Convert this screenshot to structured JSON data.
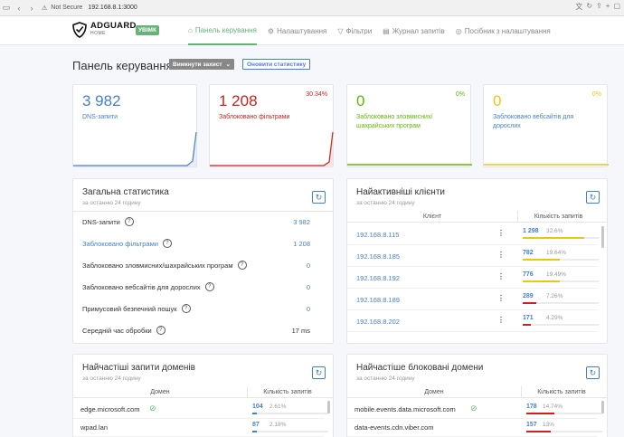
{
  "browser": {
    "not_secure": "Not Secure",
    "url": "192.168.8.1:3000"
  },
  "header": {
    "logo_name": "ADGUARD",
    "logo_sub": "HOME",
    "status_badge": "УВІМК",
    "menu": [
      {
        "label": "Панель керування",
        "icon": "dashboard-icon",
        "glyph": "⌂"
      },
      {
        "label": "Налаштування",
        "icon": "gear-icon",
        "glyph": "⚙"
      },
      {
        "label": "Фільтри",
        "icon": "filter-icon",
        "glyph": "▽"
      },
      {
        "label": "Журнал запитів",
        "icon": "log-icon",
        "glyph": "▤"
      },
      {
        "label": "Посібник з налаштування",
        "icon": "setup-guide-icon",
        "glyph": "◎"
      }
    ]
  },
  "page": {
    "title": "Панель керування",
    "disable_protection": "Вимкнути захист",
    "refresh_stats": "Оновити статистику"
  },
  "stats": [
    {
      "value": "3 982",
      "label": "DNS-запити",
      "percent": "",
      "color": "#467fcf"
    },
    {
      "value": "1 208",
      "label": "Заблоковано фільтрами",
      "percent": "30.34%",
      "color": "#cd201f"
    },
    {
      "value": "0",
      "label": "Заблоковано зловмисних/шахрайських програм",
      "percent": "0%",
      "color": "#5eba00"
    },
    {
      "value": "0",
      "label": "Заблоковано вебсайтів для дорослих",
      "percent": "0%",
      "color": "#f1c40f"
    }
  ],
  "general": {
    "title": "Загальна статистика",
    "subtitle": "за останню 24 годину",
    "rows": [
      {
        "label": "DNS-запити",
        "value": "3 982"
      },
      {
        "label": "Заблоковано фільтрами",
        "value": "1 208"
      },
      {
        "label": "Заблоковано зловмисних/шахрайських програм",
        "value": "0"
      },
      {
        "label": "Заблоковано вебсайтів для дорослих",
        "value": "0"
      },
      {
        "label": "Примусовий безпечний пошук",
        "value": "0"
      },
      {
        "label": "Середній час обробки",
        "value": "17 ms"
      }
    ]
  },
  "clients": {
    "title": "Найактивніші клієнти",
    "subtitle": "за останню 24 годину",
    "col_client": "Клієнт",
    "col_count": "Кількість запитів",
    "rows": [
      {
        "ip": "192.168.8.115",
        "count": "1 298",
        "percent": "32.6%",
        "fill": 0.326,
        "color": "#f1c40f"
      },
      {
        "ip": "192.168.8.185",
        "count": "782",
        "percent": "19.64%",
        "fill": 0.196,
        "color": "#f1c40f"
      },
      {
        "ip": "192.168.8.192",
        "count": "776",
        "percent": "19.49%",
        "fill": 0.195,
        "color": "#f1c40f"
      },
      {
        "ip": "192.168.8.189",
        "count": "289",
        "percent": "7.26%",
        "fill": 0.073,
        "color": "#cd201f"
      },
      {
        "ip": "192.168.8.202",
        "count": "171",
        "percent": "4.29%",
        "fill": 0.043,
        "color": "#cd201f"
      }
    ]
  },
  "top_domains": {
    "title": "Найчастіші запити доменів",
    "subtitle": "за останню 24 годину",
    "col_domain": "Домен",
    "col_count": "Кількість запитів",
    "rows": [
      {
        "domain": "edge.microsoft.com",
        "count": "104",
        "percent": "2.61%",
        "fill": 0.026,
        "color": "#467fcf"
      },
      {
        "domain": "wpad.lan",
        "count": "87",
        "percent": "2.18%",
        "fill": 0.022,
        "color": "#467fcf"
      }
    ]
  },
  "blocked_domains": {
    "title": "Найчастіше блоковані домени",
    "subtitle": "за останню 24 годину",
    "col_domain": "Домен",
    "col_count": "Кількість запитів",
    "rows": [
      {
        "domain": "mobile.events.data.microsoft.com",
        "count": "178",
        "percent": "14.74%",
        "fill": 0.147,
        "color": "#cd201f"
      },
      {
        "domain": "data-events.cdn.viber.com",
        "count": "157",
        "percent": "13%",
        "fill": 0.13,
        "color": "#cd201f"
      }
    ]
  }
}
